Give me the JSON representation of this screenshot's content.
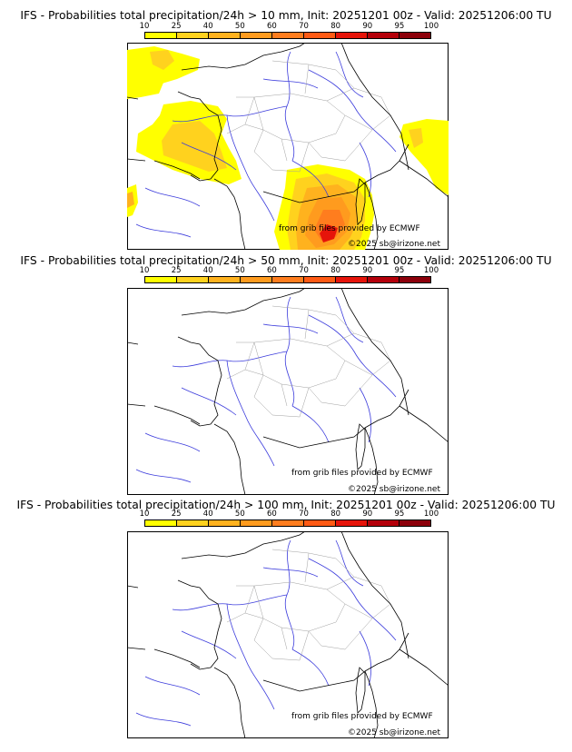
{
  "colorbar": {
    "ticks": [
      "10",
      "25",
      "40",
      "50",
      "60",
      "70",
      "80",
      "90",
      "95",
      "100"
    ],
    "colors": [
      "#ffff00",
      "#ffd21e",
      "#ffb21e",
      "#ff9b1e",
      "#ff7d1e",
      "#ff5a14",
      "#e6140a",
      "#b4000a",
      "#8c000a",
      "#640000"
    ]
  },
  "panels": [
    {
      "title": "IFS - Probabilities total precipitation/24h > 10 mm, Init: 20251201 00z - Valid: 20251206:00 TU",
      "credit_source": "from grib files provided by ECMWF",
      "credit_copyright": "©2025 sb@irizone.net"
    },
    {
      "title": "IFS - Probabilities total precipitation/24h > 50 mm, Init: 20251201 00z - Valid: 20251206:00 TU",
      "credit_source": "from grib files provided by ECMWF",
      "credit_copyright": "©2025 sb@irizone.net"
    },
    {
      "title": "IFS - Probabilities total precipitation/24h > 100 mm, Init: 20251201 00z - Valid: 20251206:00 TU",
      "credit_source": "from grib files provided by ECMWF",
      "credit_copyright": "©2025 sb@irizone.net"
    }
  ]
}
